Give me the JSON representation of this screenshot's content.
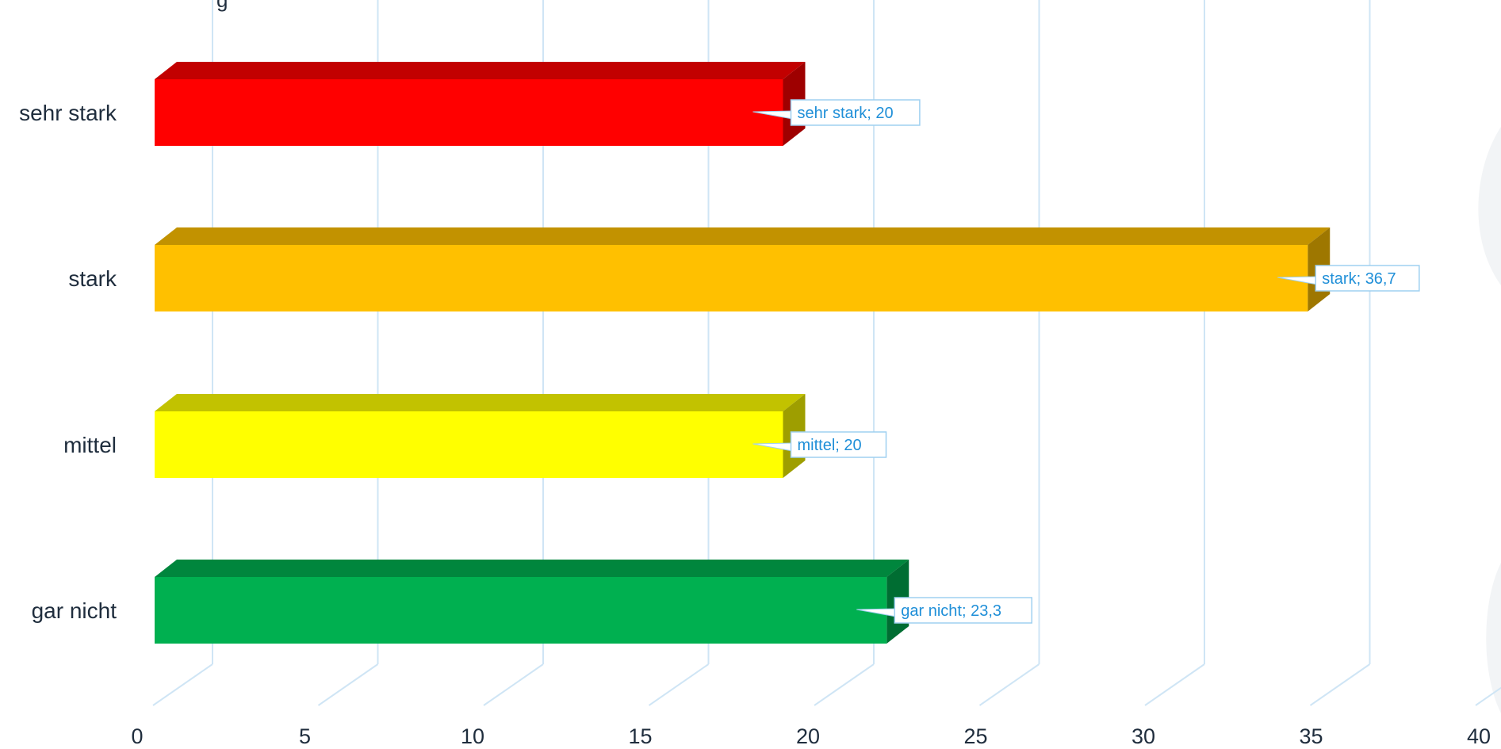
{
  "chart_data": {
    "type": "bar",
    "orientation": "horizontal",
    "style": "3d",
    "title_fragment": "g",
    "categories": [
      "sehr stark",
      "stark",
      "mittel",
      "gar nicht"
    ],
    "values": [
      20,
      36.7,
      20,
      23.3
    ],
    "data_labels": [
      "sehr stark; 20",
      "stark; 36,7",
      "mittel; 20",
      "gar nicht; 23,3"
    ],
    "colors": [
      "#ff0000",
      "#ffc000",
      "#ffff00",
      "#00b050"
    ],
    "x_ticks": [
      "0",
      "5",
      "10",
      "15",
      "20",
      "25",
      "30",
      "35",
      "40"
    ],
    "xlim": [
      0,
      40
    ],
    "gridlines": true,
    "grid_color": "#cfe5f5",
    "label_color": "#1f8fd8"
  }
}
